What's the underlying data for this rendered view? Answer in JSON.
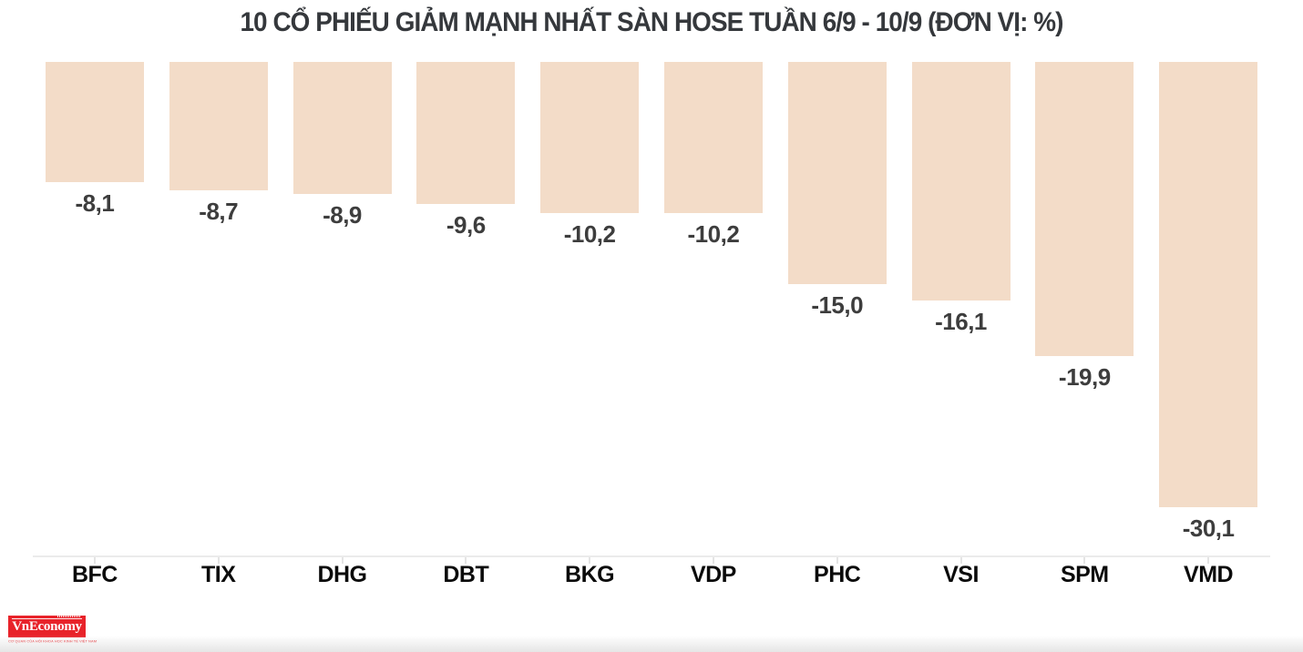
{
  "chart_data": {
    "type": "bar",
    "title": "10 CỔ PHIẾU GIẢM MẠNH NHẤT SÀN HOSE TUẦN 6/9 - 10/9 (ĐƠN VỊ: %)",
    "categories": [
      "BFC",
      "TIX",
      "DHG",
      "DBT",
      "BKG",
      "VDP",
      "PHC",
      "VSI",
      "SPM",
      "VMD"
    ],
    "values": [
      -8.1,
      -8.7,
      -8.9,
      -9.6,
      -10.2,
      -10.2,
      -15.0,
      -16.1,
      -19.9,
      -30.1
    ],
    "value_labels": [
      "-8,1",
      "-8,7",
      "-8,9",
      "-9,6",
      "-10,2",
      "-10,2",
      "-15,0",
      "-16,1",
      "-19,9",
      "-30,1"
    ],
    "unit": "%",
    "orientation": "vertical",
    "baseline": "top",
    "ylim": [
      -30.1,
      0
    ],
    "grid": false,
    "legend": false,
    "bar_color": "#f3dcc8",
    "value_label_color": "#3d3d3d",
    "category_label_color": "#0b0b0b",
    "axis_line_color": "#ebebeb"
  },
  "branding": {
    "logo_text": "VnEconomy",
    "logo_tagline": "CƠ QUAN CỦA HỘI KHOA HỌC KINH TẾ VIỆT NAM",
    "logo_color": "#e8232a"
  }
}
